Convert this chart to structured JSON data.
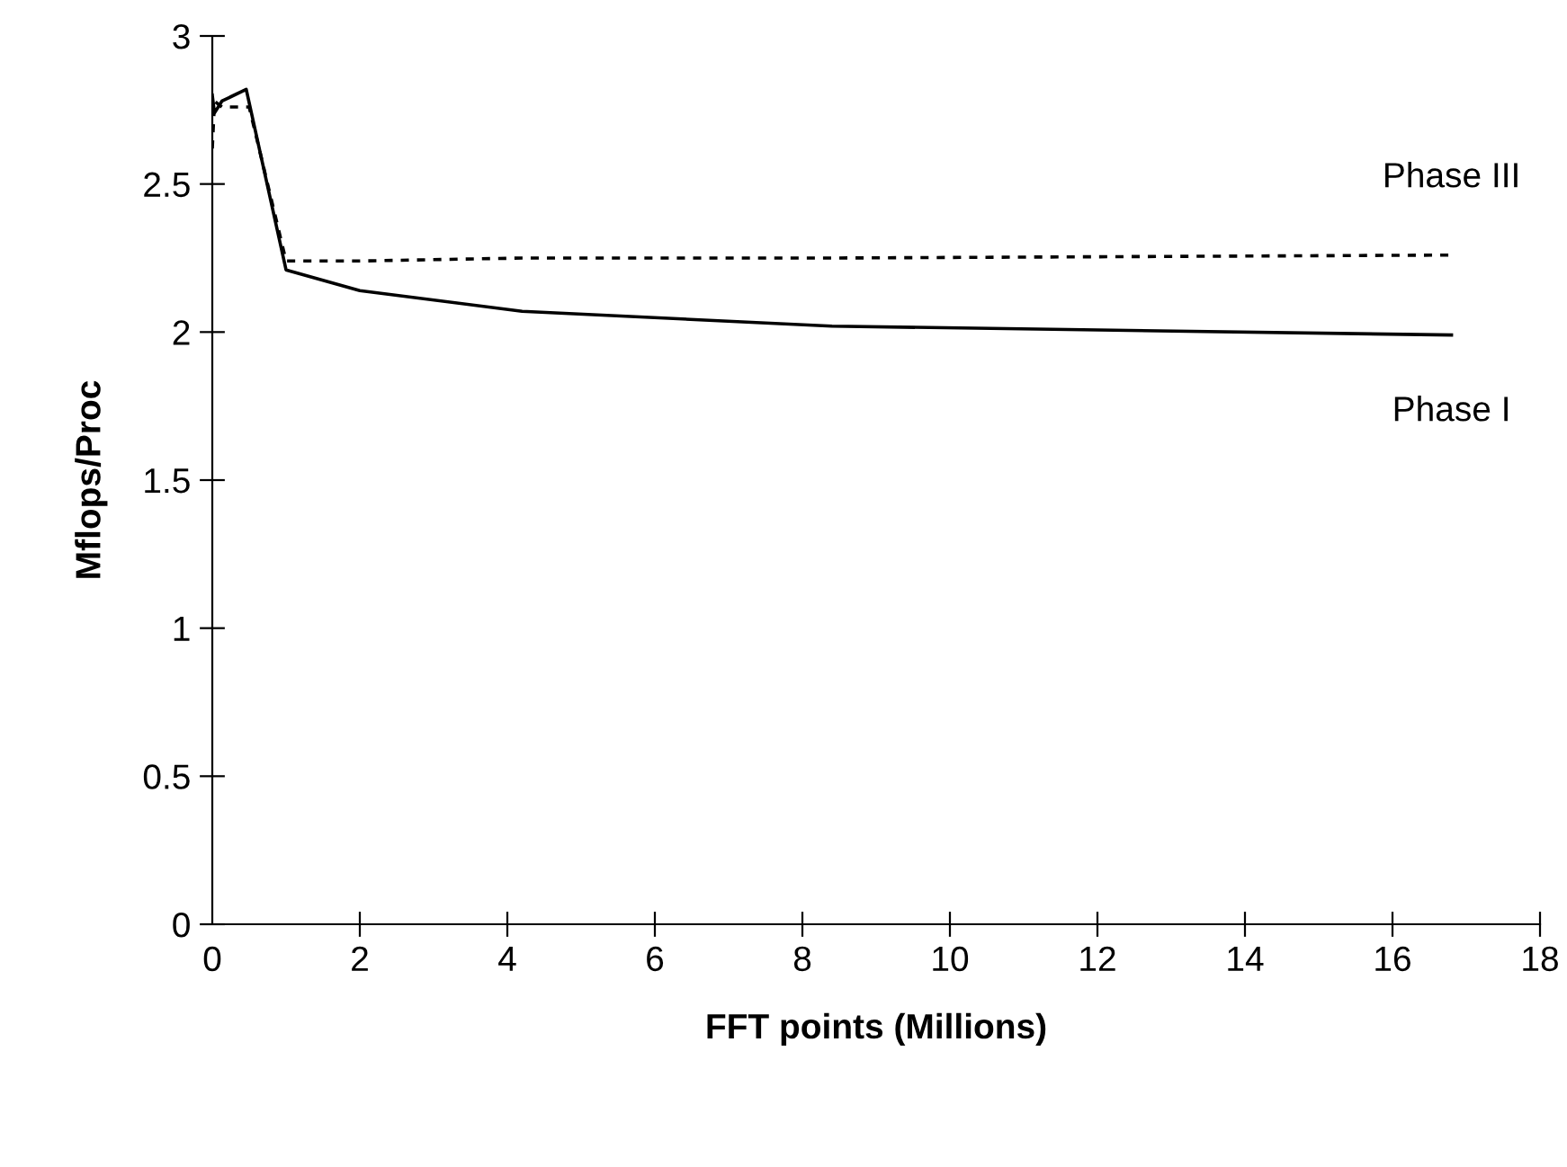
{
  "chart_data": {
    "type": "line",
    "xlabel": "FFT points (Millions)",
    "ylabel": "Mflops/Proc",
    "series": [
      {
        "name": "Phase III",
        "color": "#000000",
        "line_style": "dashed",
        "x": [
          0,
          0.03,
          0.13,
          0.5,
          1.0,
          2,
          4.2,
          8.4,
          16.8
        ],
        "values": [
          2.62,
          2.78,
          2.76,
          2.76,
          2.24,
          2.24,
          2.25,
          2.25,
          2.26
        ]
      },
      {
        "name": "Phase I",
        "color": "#000000",
        "line_style": "solid",
        "x": [
          0,
          0.03,
          0.13,
          0.46,
          1.0,
          2,
          4.2,
          8.4,
          16.8
        ],
        "values": [
          2.8,
          2.74,
          2.78,
          2.82,
          2.21,
          2.14,
          2.07,
          2.02,
          1.99
        ]
      }
    ],
    "xlim": [
      0,
      18
    ],
    "xticks": [
      0,
      2,
      4,
      6,
      8,
      10,
      12,
      14,
      16,
      18
    ],
    "ylim": [
      0,
      3
    ],
    "yticks": [
      0,
      0.5,
      1,
      1.5,
      2,
      2.5,
      3
    ],
    "grid": false,
    "legend": false,
    "marker": "none"
  }
}
